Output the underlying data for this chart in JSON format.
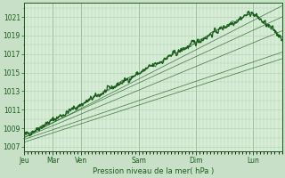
{
  "title": "",
  "xlabel": "Pression niveau de la mer( hPa )",
  "ylabel": "",
  "bg_color": "#c8dfc8",
  "plot_bg_color": "#d8edd8",
  "grid_color": "#b0ccb0",
  "line_color": "#1a5c1a",
  "ylim": [
    1006.5,
    1022.5
  ],
  "yticks": [
    1007,
    1009,
    1011,
    1013,
    1015,
    1017,
    1019,
    1021
  ],
  "day_labels": [
    "Jeu",
    "Mar",
    "Ven",
    "Sam",
    "Dim",
    "Lun"
  ],
  "day_positions": [
    0,
    24,
    48,
    96,
    144,
    192
  ],
  "total_hours": 216,
  "font_color": "#1a5c1a"
}
